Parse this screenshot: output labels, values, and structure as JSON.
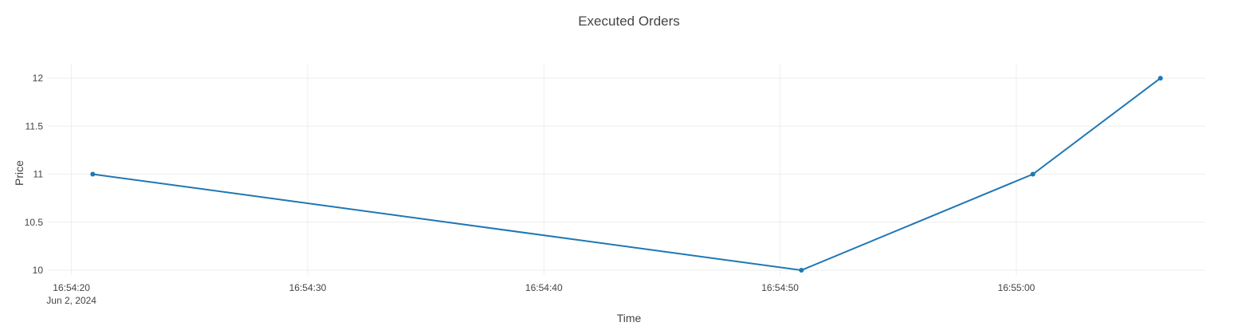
{
  "chart_data": {
    "type": "line",
    "title": "Executed Orders",
    "xlabel": "Time",
    "ylabel": "Price",
    "x_axis_type": "datetime",
    "x_date": "Jun 2, 2024",
    "x_ticks": [
      "16:54:20",
      "16:54:30",
      "16:54:40",
      "16:54:50",
      "16:55:00"
    ],
    "xlim": [
      "16:54:19",
      "16:55:08"
    ],
    "y_ticks": [
      10,
      10.5,
      11,
      11.5,
      12
    ],
    "ylim": [
      9.95,
      12.15
    ],
    "grid": true,
    "legend": false,
    "series": [
      {
        "color": "#1f77b4",
        "marker": "circle",
        "x": [
          "16:54:20.9",
          "16:54:50.9",
          "16:55:00.7",
          "16:55:06.1"
        ],
        "y": [
          11,
          10,
          11,
          12
        ]
      }
    ]
  }
}
